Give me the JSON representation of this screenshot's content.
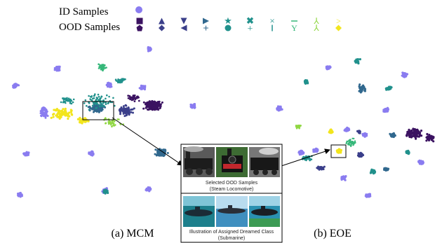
{
  "legend": {
    "id_label": "ID Samples",
    "ood_label": "OOD Samples",
    "id_color": "#8a7cf0"
  },
  "captions": {
    "left": "(a) MCM",
    "right": "(b) EOE"
  },
  "inset": {
    "top_caption_line1": "Selected OOD Samples",
    "top_caption_line2": "(Steam Locomotive)",
    "bottom_caption_line1": "Illustration of Assigned Dreamed Class",
    "bottom_caption_line2": "(Submarine)",
    "top_image_subject": "steam-locomotive-photos",
    "bottom_image_subject": "submarine-illustrations"
  },
  "colors": {
    "purple": "#3b1261",
    "indigo": "#3b3f8a",
    "blue": "#31688e",
    "teal": "#21918c",
    "green": "#35b779",
    "lime": "#90d743",
    "yellow": "#f2e51d",
    "id": "#8a7cf0"
  }
}
